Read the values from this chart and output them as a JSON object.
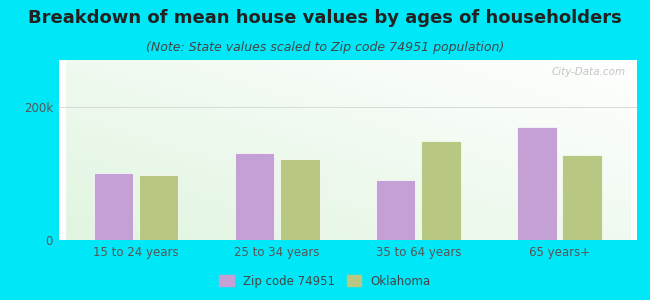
{
  "title": "Breakdown of mean house values by ages of householders",
  "subtitle": "(Note: State values scaled to Zip code 74951 population)",
  "categories": [
    "15 to 24 years",
    "25 to 34 years",
    "35 to 64 years",
    "65 years+"
  ],
  "zip_values": [
    100000,
    130000,
    90000,
    170000
  ],
  "ok_values": [
    97000,
    122000,
    148000,
    128000
  ],
  "zip_color": "#c4a0d4",
  "ok_color": "#b8c882",
  "background_outer": "#00e8f8",
  "yticks": [
    0,
    200000
  ],
  "ytick_labels": [
    "0",
    "200k"
  ],
  "title_fontsize": 13,
  "subtitle_fontsize": 9,
  "legend_label_zip": "Zip code 74951",
  "legend_label_ok": "Oklahoma",
  "watermark": "City-Data.com",
  "ylim": [
    0,
    270000
  ],
  "bar_width": 0.28
}
